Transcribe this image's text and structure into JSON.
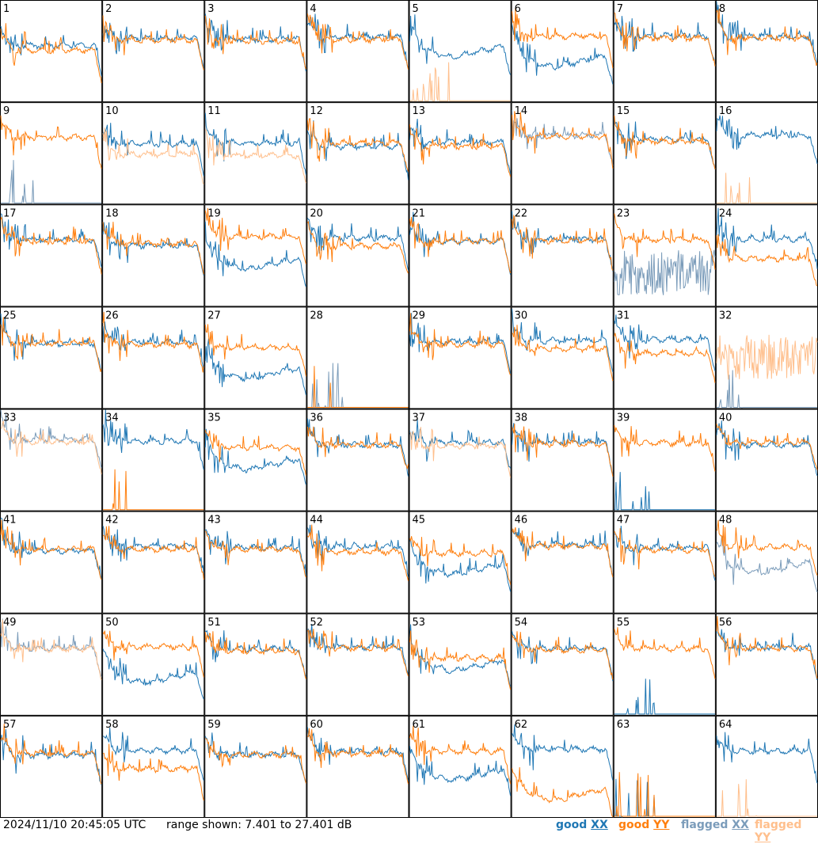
{
  "footer": {
    "timestamp": "2024/11/10 20:45:05 UTC",
    "range": "range shown: 7.401 to 27.401 dB"
  },
  "legend": {
    "good_xx_prefix": "good ",
    "good_xx_pol": "XX",
    "good_yy_prefix": "good ",
    "good_yy_pol": "YY",
    "flag_xx_prefix": "flagged ",
    "flag_xx_pol": "XX",
    "flag_yy_prefix": "flagged ",
    "flag_yy_pol": "YY"
  },
  "colors": {
    "good_xx": "#1f77b4",
    "good_yy": "#ff7f0e",
    "flagged_xx": "#7b9cba",
    "flagged_yy": "#ffbf8c",
    "grid": "#000000"
  },
  "chart_data": {
    "type": "line",
    "grid_rows": 8,
    "grid_cols": 8,
    "ylim": [
      7.401,
      27.401
    ],
    "y_unit": "dB",
    "tiles": [
      {
        "label": "1",
        "xx": "good",
        "yy": "good",
        "xx_shape": "hump",
        "yy_shape": "hump",
        "xx_level": 18.5,
        "yy_level": 17.6
      },
      {
        "label": "2",
        "xx": "good",
        "yy": "good",
        "xx_shape": "hump",
        "yy_shape": "hump",
        "xx_level": 20.0,
        "yy_level": 19.6
      },
      {
        "label": "3",
        "xx": "good",
        "yy": "good",
        "xx_shape": "hump",
        "yy_shape": "hump",
        "xx_level": 19.8,
        "yy_level": 19.4
      },
      {
        "label": "4",
        "xx": "good",
        "yy": "good",
        "xx_shape": "hump",
        "yy_shape": "hump",
        "xx_level": 20.2,
        "yy_level": 19.7
      },
      {
        "label": "5",
        "xx": "good",
        "yy": "flagged",
        "xx_shape": "valley",
        "yy_shape": "dead",
        "xx_level": 19.5,
        "yy_level": 7.6
      },
      {
        "label": "6",
        "xx": "good",
        "yy": "good",
        "xx_shape": "valley",
        "yy_shape": "hump",
        "xx_level": 17.5,
        "yy_level": 20.4
      },
      {
        "label": "7",
        "xx": "good",
        "yy": "good",
        "xx_shape": "hump",
        "yy_shape": "hump",
        "xx_level": 20.4,
        "yy_level": 20.0
      },
      {
        "label": "8",
        "xx": "good",
        "yy": "good",
        "xx_shape": "hump",
        "yy_shape": "hump",
        "xx_level": 20.3,
        "yy_level": 20.0
      },
      {
        "label": "9",
        "xx": "flagged",
        "yy": "good",
        "xx_shape": "dead",
        "yy_shape": "hump",
        "xx_level": 7.6,
        "yy_level": 20.6
      },
      {
        "label": "10",
        "xx": "good",
        "yy": "flagged",
        "xx_shape": "hump",
        "yy_shape": "hump",
        "xx_level": 19.3,
        "yy_level": 17.2
      },
      {
        "label": "11",
        "xx": "good",
        "yy": "flagged",
        "xx_shape": "hump",
        "yy_shape": "hump",
        "xx_level": 19.5,
        "yy_level": 17.0
      },
      {
        "label": "12",
        "xx": "good",
        "yy": "good",
        "xx_shape": "hump",
        "yy_shape": "hump",
        "xx_level": 18.8,
        "yy_level": 19.5
      },
      {
        "label": "13",
        "xx": "good",
        "yy": "good",
        "xx_shape": "hump",
        "yy_shape": "hump",
        "xx_level": 19.6,
        "yy_level": 18.8
      },
      {
        "label": "14",
        "xx": "flagged",
        "yy": "good",
        "xx_shape": "hump",
        "yy_shape": "hump",
        "xx_level": 21.0,
        "yy_level": 20.8
      },
      {
        "label": "15",
        "xx": "good",
        "yy": "good",
        "xx_shape": "hump",
        "yy_shape": "hump",
        "xx_level": 20.2,
        "yy_level": 19.8
      },
      {
        "label": "16",
        "xx": "good",
        "yy": "flagged",
        "xx_shape": "hump",
        "yy_shape": "dead",
        "xx_level": 21.0,
        "yy_level": 7.6
      },
      {
        "label": "17",
        "xx": "good",
        "yy": "good",
        "xx_shape": "hump",
        "yy_shape": "hump",
        "xx_level": 20.6,
        "yy_level": 20.2
      },
      {
        "label": "18",
        "xx": "good",
        "yy": "good",
        "xx_shape": "hump",
        "yy_shape": "hump",
        "xx_level": 19.4,
        "yy_level": 19.8
      },
      {
        "label": "19",
        "xx": "good",
        "yy": "good",
        "xx_shape": "valley",
        "yy_shape": "hump",
        "xx_level": 17.9,
        "yy_level": 21.2
      },
      {
        "label": "20",
        "xx": "good",
        "yy": "good",
        "xx_shape": "hump",
        "yy_shape": "hump",
        "xx_level": 20.9,
        "yy_level": 19.3
      },
      {
        "label": "21",
        "xx": "good",
        "yy": "good",
        "xx_shape": "hump",
        "yy_shape": "hump",
        "xx_level": 20.3,
        "yy_level": 20.3
      },
      {
        "label": "22",
        "xx": "good",
        "yy": "good",
        "xx_shape": "hump",
        "yy_shape": "hump",
        "xx_level": 20.6,
        "yy_level": 20.4
      },
      {
        "label": "23",
        "xx": "flagged",
        "yy": "good",
        "xx_shape": "noise",
        "yy_shape": "hump",
        "xx_level": 14.0,
        "yy_level": 20.6
      },
      {
        "label": "24",
        "xx": "good",
        "yy": "good",
        "xx_shape": "hump",
        "yy_shape": "hump",
        "xx_level": 20.7,
        "yy_level": 16.8
      },
      {
        "label": "25",
        "xx": "good",
        "yy": "good",
        "xx_shape": "hump",
        "yy_shape": "hump",
        "xx_level": 20.3,
        "yy_level": 20.3
      },
      {
        "label": "26",
        "xx": "good",
        "yy": "good",
        "xx_shape": "hump",
        "yy_shape": "hump",
        "xx_level": 20.5,
        "yy_level": 20.0
      },
      {
        "label": "27",
        "xx": "good",
        "yy": "good",
        "xx_shape": "valley",
        "yy_shape": "hump",
        "xx_level": 16.5,
        "yy_level": 19.5
      },
      {
        "label": "28",
        "xx": "flagged",
        "yy": "good",
        "xx_shape": "dead",
        "yy_shape": "dead",
        "xx_level": 7.6,
        "yy_level": 7.6
      },
      {
        "label": "29",
        "xx": "good",
        "yy": "good",
        "xx_shape": "hump",
        "yy_shape": "hump",
        "xx_level": 20.6,
        "yy_level": 20.1
      },
      {
        "label": "30",
        "xx": "good",
        "yy": "good",
        "xx_shape": "hump",
        "yy_shape": "hump",
        "xx_level": 20.8,
        "yy_level": 19.2
      },
      {
        "label": "31",
        "xx": "good",
        "yy": "good",
        "xx_shape": "hump",
        "yy_shape": "hump",
        "xx_level": 21.0,
        "yy_level": 18.3
      },
      {
        "label": "32",
        "xx": "flagged",
        "yy": "flagged",
        "xx_shape": "dead",
        "yy_shape": "noise",
        "xx_level": 7.6,
        "yy_level": 17.5
      },
      {
        "label": "33",
        "xx": "flagged",
        "yy": "flagged",
        "xx_shape": "hump",
        "yy_shape": "hump",
        "xx_level": 21.5,
        "yy_level": 21.0
      },
      {
        "label": "34",
        "xx": "good",
        "yy": "good",
        "xx_shape": "hump",
        "yy_shape": "dead",
        "xx_level": 21.2,
        "yy_level": 7.6
      },
      {
        "label": "35",
        "xx": "good",
        "yy": "good",
        "xx_shape": "valley",
        "yy_shape": "hump",
        "xx_level": 18.7,
        "yy_level": 19.9
      },
      {
        "label": "36",
        "xx": "good",
        "yy": "good",
        "xx_shape": "hump",
        "yy_shape": "hump",
        "xx_level": 20.4,
        "yy_level": 20.4
      },
      {
        "label": "37",
        "xx": "good",
        "yy": "flagged",
        "xx_shape": "hump",
        "yy_shape": "hump",
        "xx_level": 20.9,
        "yy_level": 20.2
      },
      {
        "label": "38",
        "xx": "good",
        "yy": "good",
        "xx_shape": "hump",
        "yy_shape": "hump",
        "xx_level": 21.0,
        "yy_level": 20.6
      },
      {
        "label": "39",
        "xx": "good",
        "yy": "good",
        "xx_shape": "dead",
        "yy_shape": "hump",
        "xx_level": 7.6,
        "yy_level": 20.8
      },
      {
        "label": "40",
        "xx": "good",
        "yy": "good",
        "xx_shape": "hump",
        "yy_shape": "hump",
        "xx_level": 20.4,
        "yy_level": 20.9
      },
      {
        "label": "41",
        "xx": "good",
        "yy": "good",
        "xx_shape": "hump",
        "yy_shape": "hump",
        "xx_level": 19.7,
        "yy_level": 20.0
      },
      {
        "label": "42",
        "xx": "good",
        "yy": "good",
        "xx_shape": "hump",
        "yy_shape": "hump",
        "xx_level": 20.6,
        "yy_level": 20.0
      },
      {
        "label": "43",
        "xx": "good",
        "yy": "good",
        "xx_shape": "hump",
        "yy_shape": "hump",
        "xx_level": 20.4,
        "yy_level": 20.0
      },
      {
        "label": "44",
        "xx": "good",
        "yy": "good",
        "xx_shape": "hump",
        "yy_shape": "hump",
        "xx_level": 20.5,
        "yy_level": 19.5
      },
      {
        "label": "45",
        "xx": "good",
        "yy": "good",
        "xx_shape": "valley",
        "yy_shape": "hump",
        "xx_level": 18.2,
        "yy_level": 19.2
      },
      {
        "label": "46",
        "xx": "good",
        "yy": "good",
        "xx_shape": "hump",
        "yy_shape": "hump",
        "xx_level": 20.9,
        "yy_level": 20.6
      },
      {
        "label": "47",
        "xx": "good",
        "yy": "good",
        "xx_shape": "hump",
        "yy_shape": "hump",
        "xx_level": 20.3,
        "yy_level": 19.9
      },
      {
        "label": "48",
        "xx": "flagged",
        "yy": "good",
        "xx_shape": "valley",
        "yy_shape": "hump",
        "xx_level": 18.5,
        "yy_level": 20.4
      },
      {
        "label": "49",
        "xx": "flagged",
        "yy": "flagged",
        "xx_shape": "hump",
        "yy_shape": "hump",
        "xx_level": 20.7,
        "yy_level": 20.5
      },
      {
        "label": "50",
        "xx": "good",
        "yy": "good",
        "xx_shape": "valley",
        "yy_shape": "hump",
        "xx_level": 17.0,
        "yy_level": 20.9
      },
      {
        "label": "51",
        "xx": "good",
        "yy": "good",
        "xx_shape": "hump",
        "yy_shape": "hump",
        "xx_level": 20.5,
        "yy_level": 20.1
      },
      {
        "label": "52",
        "xx": "good",
        "yy": "good",
        "xx_shape": "hump",
        "yy_shape": "hump",
        "xx_level": 20.9,
        "yy_level": 20.7
      },
      {
        "label": "53",
        "xx": "good",
        "yy": "good",
        "xx_shape": "valley",
        "yy_shape": "hump",
        "xx_level": 19.4,
        "yy_level": 18.7
      },
      {
        "label": "54",
        "xx": "good",
        "yy": "good",
        "xx_shape": "hump",
        "yy_shape": "hump",
        "xx_level": 20.6,
        "yy_level": 20.3
      },
      {
        "label": "55",
        "xx": "good",
        "yy": "good",
        "xx_shape": "dead",
        "yy_shape": "hump",
        "xx_level": 7.6,
        "yy_level": 20.6
      },
      {
        "label": "56",
        "xx": "good",
        "yy": "good",
        "xx_shape": "hump",
        "yy_shape": "hump",
        "xx_level": 20.8,
        "yy_level": 20.6
      },
      {
        "label": "57",
        "xx": "good",
        "yy": "good",
        "xx_shape": "hump",
        "yy_shape": "hump",
        "xx_level": 19.7,
        "yy_level": 20.1
      },
      {
        "label": "58",
        "xx": "good",
        "yy": "good",
        "xx_shape": "hump",
        "yy_shape": "hump",
        "xx_level": 20.6,
        "yy_level": 17.0
      },
      {
        "label": "59",
        "xx": "good",
        "yy": "good",
        "xx_shape": "hump",
        "yy_shape": "hump",
        "xx_level": 19.8,
        "yy_level": 19.8
      },
      {
        "label": "60",
        "xx": "good",
        "yy": "good",
        "xx_shape": "hump",
        "yy_shape": "hump",
        "xx_level": 20.4,
        "yy_level": 20.0
      },
      {
        "label": "61",
        "xx": "good",
        "yy": "good",
        "xx_shape": "valley",
        "yy_shape": "hump",
        "xx_level": 18.0,
        "yy_level": 20.5
      },
      {
        "label": "62",
        "xx": "good",
        "yy": "good",
        "xx_shape": "hump",
        "yy_shape": "valley",
        "xx_level": 20.9,
        "yy_level": 14.0
      },
      {
        "label": "63",
        "xx": "good",
        "yy": "good",
        "xx_shape": "dead",
        "yy_shape": "dead",
        "xx_level": 7.6,
        "yy_level": 7.6
      },
      {
        "label": "64",
        "xx": "good",
        "yy": "flagged",
        "xx_shape": "hump",
        "yy_shape": "dead",
        "xx_level": 20.5,
        "yy_level": 7.6
      }
    ]
  }
}
